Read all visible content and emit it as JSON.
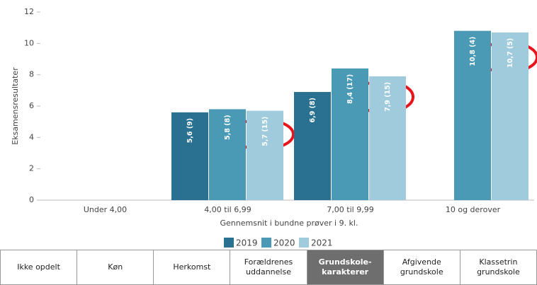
{
  "chart_data": {
    "type": "bar",
    "y_label": "Eksamensresultater",
    "x_label": "Gennemsnit i bundne prøver i 9. kl.",
    "categories": [
      "Under 4,00",
      "4,00 til 6,99",
      "7,00 til 9,99",
      "10 og derover"
    ],
    "series": [
      {
        "name": "2019",
        "color": "#2a7191",
        "values": [
          null,
          5.6,
          6.9,
          null
        ],
        "value_labels": [
          null,
          "5,6 (9)",
          "6,9 (8)",
          null
        ]
      },
      {
        "name": "2020",
        "color": "#4a9ab5",
        "values": [
          null,
          5.8,
          8.4,
          10.8
        ],
        "value_labels": [
          null,
          "5,8 (8)",
          "8,4 (17)",
          "10,8 (4)"
        ]
      },
      {
        "name": "2021",
        "color": "#9fcbdc",
        "values": [
          null,
          5.7,
          7.9,
          10.7
        ],
        "value_labels": [
          null,
          "5,7 (15)",
          "7,9 (15)",
          "10,7 (5)"
        ]
      }
    ],
    "ylim": [
      0,
      12
    ],
    "yticks": [
      0,
      2,
      4,
      6,
      8,
      10,
      12
    ],
    "grid": false
  },
  "tabs": {
    "items": [
      "Ikke opdelt",
      "Køn",
      "Herkomst",
      "Forældrenes\nuddannelse",
      "Grundskole-\nkarakterer",
      "Afgivende\ngrundskole",
      "Klassetrin\ngrundskole"
    ],
    "active": 4
  }
}
